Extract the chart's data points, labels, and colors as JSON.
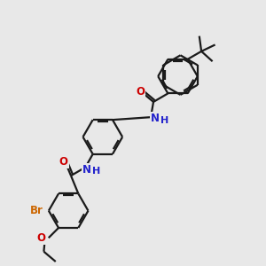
{
  "bg": "#e8e8e8",
  "bc": "#1a1a1a",
  "lw": 1.6,
  "doff": 0.07,
  "colors": {
    "O": "#cc0000",
    "N": "#2222cc",
    "Br": "#cc6600",
    "H": "#2222cc"
  },
  "fs": 8.5,
  "xlim": [
    0,
    10
  ],
  "ylim": [
    0,
    10
  ]
}
